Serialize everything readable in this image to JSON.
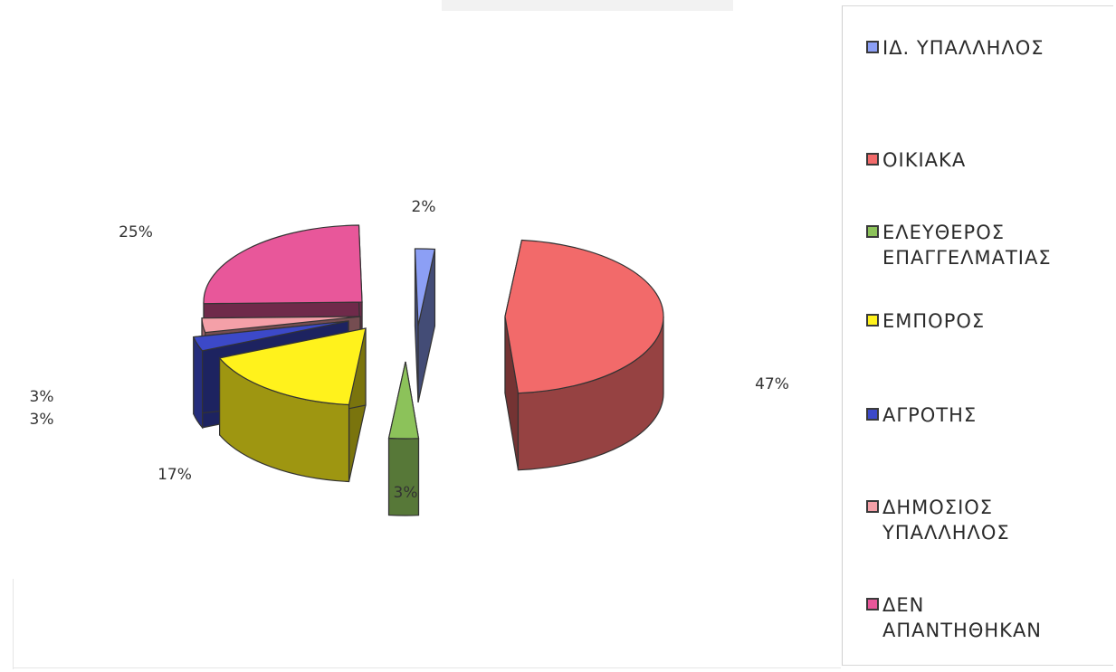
{
  "chart_data": {
    "type": "pie",
    "title": "",
    "slices": [
      {
        "label": "ΙΔ. ΥΠΑΛΛΗΛΟΣ",
        "value": 2,
        "display": "2%",
        "color": "#8c9ff5"
      },
      {
        "label": "ΟΙΚΙΑΚΑ",
        "value": 47,
        "display": "47%",
        "color": "#f26a6a"
      },
      {
        "label": "ΕΛΕΥΘΕΡΟΣ ΕΠΑΓΓΕΛΜΑΤΙΑΣ",
        "value": 3,
        "display": "3%",
        "color": "#8cc25a"
      },
      {
        "label": "ΕΜΠΟΡΟΣ",
        "value": 17,
        "display": "17%",
        "color": "#fff21c"
      },
      {
        "label": "ΑΓΡΟΤΗΣ",
        "value": 3,
        "display": "3%",
        "color": "#3c49c8"
      },
      {
        "label": "ΔΗΜΟΣΙΟΣ ΥΠΑΛΛΗΛΟΣ",
        "value": 3,
        "display": "3%",
        "color": "#f4a0a8"
      },
      {
        "label": "ΔΕΝ ΑΠΑΝΤΗΘΗΚΑΝ",
        "value": 25,
        "display": "25%",
        "color": "#e8579a"
      }
    ],
    "legend_position": "right",
    "style": "3d-exploded"
  },
  "legend": {
    "items": [
      {
        "label": "ΙΔ. ΥΠΑΛΛΗΛΟΣ",
        "color": "#8c9ff5"
      },
      {
        "label": "ΟΙΚΙΑΚΑ",
        "color": "#f26a6a"
      },
      {
        "label": "ΕΛΕΥΘΕΡΟΣ\nΕΠΑΓΓΕΛΜΑΤΙΑΣ",
        "color": "#8cc25a"
      },
      {
        "label": "ΕΜΠΟΡΟΣ",
        "color": "#fff21c"
      },
      {
        "label": "ΑΓΡΟΤΗΣ",
        "color": "#3c49c8"
      },
      {
        "label": "ΔΗΜΟΣΙΟΣ\nΥΠΑΛΛΗΛΟΣ",
        "color": "#f4a0a8"
      },
      {
        "label": "ΔΕΝ\nΑΠΑΝΤΗΘΗΚΑΝ",
        "color": "#e8579a"
      }
    ]
  }
}
